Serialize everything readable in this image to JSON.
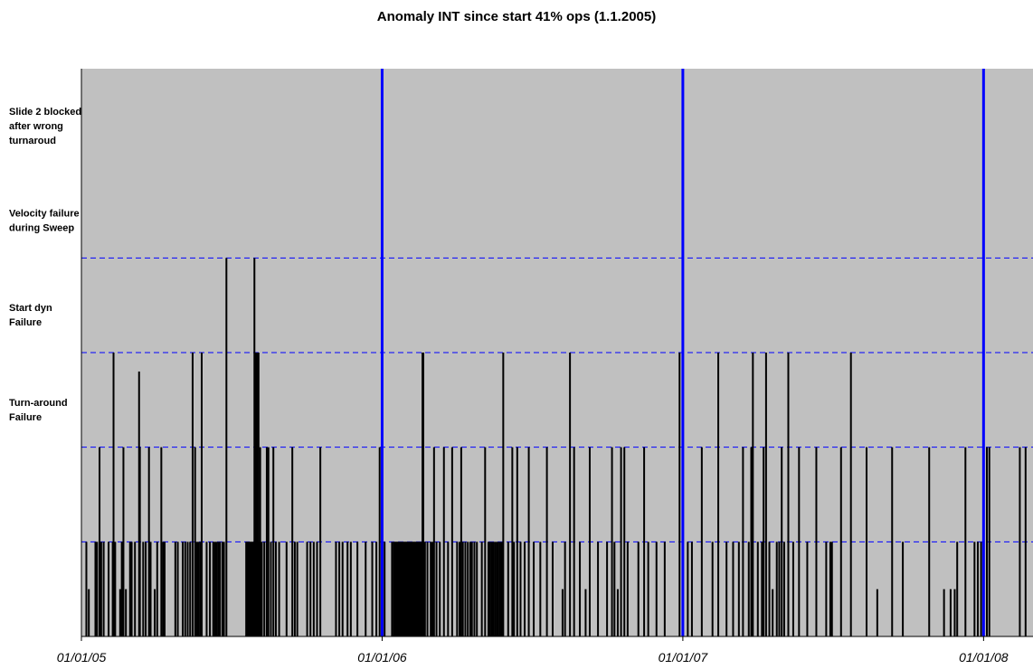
{
  "chart_data": {
    "type": "bar",
    "title": "Anomaly INT since start 41% ops (1.1.2005)",
    "x_range": [
      "2005-01-01",
      "2008-03-01"
    ],
    "y_range": [
      0,
      6
    ],
    "x_tick_labels": [
      "01/01/05",
      "01/01/06",
      "01/01/07",
      "01/01/08"
    ],
    "x_tick_dates": [
      "2005-01-01",
      "2006-01-01",
      "2007-01-01",
      "2008-01-01"
    ],
    "y_category_labels": [
      {
        "value": 5.4,
        "lines": [
          "Slide 2 blocked",
          "after wrong",
          "turnaroud"
        ]
      },
      {
        "value": 4.4,
        "lines": [
          "Velocity failure",
          "during Sweep"
        ]
      },
      {
        "value": 3.4,
        "lines": [
          "Start dyn",
          "Failure"
        ]
      },
      {
        "value": 2.4,
        "lines": [
          "Turn-around",
          "Failure"
        ]
      }
    ],
    "reference_lines": [
      1,
      2,
      3,
      4
    ],
    "year_markers": [
      "2006-01-01",
      "2007-01-01",
      "2008-01-01"
    ],
    "grid": true,
    "plot_background": "#c0c0c0",
    "colors": {
      "bars": "#000000",
      "reference_lines": "#0000ff",
      "year_markers": "#0000ff"
    },
    "events": [
      {
        "date": "2005-01-07",
        "value": 1
      },
      {
        "date": "2005-01-10",
        "value": 0.5
      },
      {
        "date": "2005-01-18",
        "value": 1
      },
      {
        "date": "2005-01-20",
        "value": 1
      },
      {
        "date": "2005-01-23",
        "value": 2
      },
      {
        "date": "2005-01-25",
        "value": 1
      },
      {
        "date": "2005-01-28",
        "value": 1
      },
      {
        "date": "2005-02-03",
        "value": 1
      },
      {
        "date": "2005-02-08",
        "value": 1
      },
      {
        "date": "2005-02-09",
        "value": 3
      },
      {
        "date": "2005-02-11",
        "value": 1
      },
      {
        "date": "2005-02-17",
        "value": 0.5
      },
      {
        "date": "2005-02-19",
        "value": 1
      },
      {
        "date": "2005-02-21",
        "value": 2
      },
      {
        "date": "2005-02-24",
        "value": 0.5
      },
      {
        "date": "2005-03-01",
        "value": 1
      },
      {
        "date": "2005-03-03",
        "value": 1
      },
      {
        "date": "2005-03-07",
        "value": 1
      },
      {
        "date": "2005-03-12",
        "value": 2.8
      },
      {
        "date": "2005-03-13",
        "value": 2
      },
      {
        "date": "2005-03-17",
        "value": 1
      },
      {
        "date": "2005-03-20",
        "value": 1
      },
      {
        "date": "2005-03-24",
        "value": 2
      },
      {
        "date": "2005-03-26",
        "value": 1
      },
      {
        "date": "2005-03-31",
        "value": 0.5
      },
      {
        "date": "2005-04-03",
        "value": 1
      },
      {
        "date": "2005-04-08",
        "value": 2
      },
      {
        "date": "2005-04-10",
        "value": 1
      },
      {
        "date": "2005-04-12",
        "value": 1
      },
      {
        "date": "2005-04-25",
        "value": 1
      },
      {
        "date": "2005-04-28",
        "value": 1
      },
      {
        "date": "2005-05-04",
        "value": 1
      },
      {
        "date": "2005-05-07",
        "value": 1
      },
      {
        "date": "2005-05-10",
        "value": 1
      },
      {
        "date": "2005-05-13",
        "value": 1
      },
      {
        "date": "2005-05-16",
        "value": 3
      },
      {
        "date": "2005-05-19",
        "value": 2
      },
      {
        "date": "2005-05-21",
        "value": 1
      },
      {
        "date": "2005-05-23",
        "value": 1
      },
      {
        "date": "2005-05-25",
        "value": 1
      },
      {
        "date": "2005-05-27",
        "value": 3
      },
      {
        "date": "2005-06-02",
        "value": 1
      },
      {
        "date": "2005-06-06",
        "value": 1
      },
      {
        "date": "2005-06-10",
        "value": 1
      },
      {
        "date": "2005-06-12",
        "value": 1
      },
      {
        "date": "2005-06-14",
        "value": 1
      },
      {
        "date": "2005-06-16",
        "value": 1
      },
      {
        "date": "2005-06-18",
        "value": 1
      },
      {
        "date": "2005-06-21",
        "value": 1
      },
      {
        "date": "2005-06-23",
        "value": 1
      },
      {
        "date": "2005-06-26",
        "value": 4
      },
      {
        "date": "2005-07-20",
        "value": 1
      },
      {
        "date": "2005-07-21",
        "value": 1
      },
      {
        "date": "2005-07-22",
        "value": 1
      },
      {
        "date": "2005-07-23",
        "value": 1
      },
      {
        "date": "2005-07-24",
        "value": 1
      },
      {
        "date": "2005-07-25",
        "value": 1
      },
      {
        "date": "2005-07-26",
        "value": 1
      },
      {
        "date": "2005-07-27",
        "value": 1
      },
      {
        "date": "2005-07-28",
        "value": 1
      },
      {
        "date": "2005-07-29",
        "value": 1
      },
      {
        "date": "2005-07-30",
        "value": 4
      },
      {
        "date": "2005-07-31",
        "value": 3
      },
      {
        "date": "2005-08-01",
        "value": 1
      },
      {
        "date": "2005-08-02",
        "value": 3
      },
      {
        "date": "2005-08-03",
        "value": 1
      },
      {
        "date": "2005-08-04",
        "value": 3
      },
      {
        "date": "2005-08-05",
        "value": 1
      },
      {
        "date": "2005-08-06",
        "value": 2
      },
      {
        "date": "2005-08-08",
        "value": 1
      },
      {
        "date": "2005-08-11",
        "value": 1
      },
      {
        "date": "2005-08-14",
        "value": 2
      },
      {
        "date": "2005-08-16",
        "value": 2
      },
      {
        "date": "2005-08-19",
        "value": 1
      },
      {
        "date": "2005-08-22",
        "value": 2
      },
      {
        "date": "2005-08-25",
        "value": 1
      },
      {
        "date": "2005-08-29",
        "value": 1
      },
      {
        "date": "2005-09-07",
        "value": 1
      },
      {
        "date": "2005-09-14",
        "value": 2
      },
      {
        "date": "2005-09-17",
        "value": 1
      },
      {
        "date": "2005-09-20",
        "value": 1
      },
      {
        "date": "2005-10-02",
        "value": 1
      },
      {
        "date": "2005-10-06",
        "value": 1
      },
      {
        "date": "2005-10-10",
        "value": 1
      },
      {
        "date": "2005-10-14",
        "value": 1
      },
      {
        "date": "2005-10-18",
        "value": 2
      },
      {
        "date": "2005-11-06",
        "value": 1
      },
      {
        "date": "2005-11-10",
        "value": 1
      },
      {
        "date": "2005-11-14",
        "value": 1
      },
      {
        "date": "2005-11-20",
        "value": 1
      },
      {
        "date": "2005-11-24",
        "value": 1
      },
      {
        "date": "2005-12-02",
        "value": 1
      },
      {
        "date": "2005-12-12",
        "value": 1
      },
      {
        "date": "2005-12-20",
        "value": 1
      },
      {
        "date": "2005-12-25",
        "value": 1
      },
      {
        "date": "2005-12-29",
        "value": 2
      },
      {
        "date": "2006-01-04",
        "value": 1
      },
      {
        "date": "2006-01-13",
        "value": 1
      },
      {
        "date": "2006-01-15",
        "value": 1
      },
      {
        "date": "2006-01-16",
        "value": 1
      },
      {
        "date": "2006-01-17",
        "value": 1
      },
      {
        "date": "2006-01-18",
        "value": 1
      },
      {
        "date": "2006-01-19",
        "value": 1
      },
      {
        "date": "2006-01-20",
        "value": 1
      },
      {
        "date": "2006-01-21",
        "value": 1
      },
      {
        "date": "2006-01-22",
        "value": 1
      },
      {
        "date": "2006-01-23",
        "value": 1
      },
      {
        "date": "2006-01-24",
        "value": 1
      },
      {
        "date": "2006-01-25",
        "value": 1
      },
      {
        "date": "2006-01-26",
        "value": 1
      },
      {
        "date": "2006-01-27",
        "value": 1
      },
      {
        "date": "2006-01-28",
        "value": 1
      },
      {
        "date": "2006-01-29",
        "value": 1
      },
      {
        "date": "2006-01-30",
        "value": 1
      },
      {
        "date": "2006-01-31",
        "value": 1
      },
      {
        "date": "2006-02-01",
        "value": 1
      },
      {
        "date": "2006-02-02",
        "value": 1
      },
      {
        "date": "2006-02-03",
        "value": 1
      },
      {
        "date": "2006-02-04",
        "value": 1
      },
      {
        "date": "2006-02-05",
        "value": 1
      },
      {
        "date": "2006-02-06",
        "value": 1
      },
      {
        "date": "2006-02-07",
        "value": 1
      },
      {
        "date": "2006-02-08",
        "value": 1
      },
      {
        "date": "2006-02-09",
        "value": 1
      },
      {
        "date": "2006-02-10",
        "value": 1
      },
      {
        "date": "2006-02-11",
        "value": 1
      },
      {
        "date": "2006-02-12",
        "value": 1
      },
      {
        "date": "2006-02-13",
        "value": 1
      },
      {
        "date": "2006-02-14",
        "value": 1
      },
      {
        "date": "2006-02-15",
        "value": 1
      },
      {
        "date": "2006-02-16",
        "value": 1
      },
      {
        "date": "2006-02-17",
        "value": 1
      },
      {
        "date": "2006-02-18",
        "value": 1
      },
      {
        "date": "2006-02-19",
        "value": 3
      },
      {
        "date": "2006-02-20",
        "value": 3
      },
      {
        "date": "2006-02-21",
        "value": 1
      },
      {
        "date": "2006-02-22",
        "value": 1
      },
      {
        "date": "2006-02-25",
        "value": 1
      },
      {
        "date": "2006-03-01",
        "value": 1
      },
      {
        "date": "2006-03-03",
        "value": 1
      },
      {
        "date": "2006-03-05",
        "value": 2
      },
      {
        "date": "2006-03-08",
        "value": 1
      },
      {
        "date": "2006-03-12",
        "value": 1
      },
      {
        "date": "2006-03-17",
        "value": 2
      },
      {
        "date": "2006-03-22",
        "value": 1
      },
      {
        "date": "2006-03-27",
        "value": 2
      },
      {
        "date": "2006-04-02",
        "value": 1
      },
      {
        "date": "2006-04-05",
        "value": 1
      },
      {
        "date": "2006-04-07",
        "value": 2
      },
      {
        "date": "2006-04-09",
        "value": 1
      },
      {
        "date": "2006-04-12",
        "value": 1
      },
      {
        "date": "2006-04-15",
        "value": 1
      },
      {
        "date": "2006-04-18",
        "value": 1
      },
      {
        "date": "2006-04-20",
        "value": 1
      },
      {
        "date": "2006-04-23",
        "value": 1
      },
      {
        "date": "2006-04-26",
        "value": 1
      },
      {
        "date": "2006-05-02",
        "value": 1
      },
      {
        "date": "2006-05-06",
        "value": 2
      },
      {
        "date": "2006-05-10",
        "value": 1
      },
      {
        "date": "2006-05-12",
        "value": 1
      },
      {
        "date": "2006-05-14",
        "value": 1
      },
      {
        "date": "2006-05-16",
        "value": 1
      },
      {
        "date": "2006-05-18",
        "value": 1
      },
      {
        "date": "2006-05-20",
        "value": 1
      },
      {
        "date": "2006-05-22",
        "value": 1
      },
      {
        "date": "2006-05-24",
        "value": 1
      },
      {
        "date": "2006-05-26",
        "value": 1
      },
      {
        "date": "2006-05-28",
        "value": 3
      },
      {
        "date": "2006-06-03",
        "value": 1
      },
      {
        "date": "2006-06-08",
        "value": 2
      },
      {
        "date": "2006-06-10",
        "value": 1
      },
      {
        "date": "2006-06-14",
        "value": 2
      },
      {
        "date": "2006-06-18",
        "value": 1
      },
      {
        "date": "2006-06-23",
        "value": 1
      },
      {
        "date": "2006-06-28",
        "value": 2
      },
      {
        "date": "2006-07-04",
        "value": 1
      },
      {
        "date": "2006-07-12",
        "value": 1
      },
      {
        "date": "2006-07-20",
        "value": 2
      },
      {
        "date": "2006-07-27",
        "value": 1
      },
      {
        "date": "2006-08-08",
        "value": 0.5
      },
      {
        "date": "2006-08-11",
        "value": 1
      },
      {
        "date": "2006-08-17",
        "value": 3
      },
      {
        "date": "2006-08-22",
        "value": 2
      },
      {
        "date": "2006-08-29",
        "value": 1
      },
      {
        "date": "2006-09-05",
        "value": 0.5
      },
      {
        "date": "2006-09-10",
        "value": 2
      },
      {
        "date": "2006-09-20",
        "value": 1
      },
      {
        "date": "2006-10-01",
        "value": 1
      },
      {
        "date": "2006-10-07",
        "value": 2
      },
      {
        "date": "2006-10-10",
        "value": 1
      },
      {
        "date": "2006-10-14",
        "value": 0.5
      },
      {
        "date": "2006-10-18",
        "value": 2
      },
      {
        "date": "2006-10-22",
        "value": 2
      },
      {
        "date": "2006-10-26",
        "value": 1
      },
      {
        "date": "2006-11-08",
        "value": 1
      },
      {
        "date": "2006-11-15",
        "value": 2
      },
      {
        "date": "2006-11-20",
        "value": 1
      },
      {
        "date": "2006-11-30",
        "value": 1
      },
      {
        "date": "2006-12-10",
        "value": 1
      },
      {
        "date": "2006-12-28",
        "value": 3
      },
      {
        "date": "2007-01-01",
        "value": 0.5
      },
      {
        "date": "2007-01-07",
        "value": 1
      },
      {
        "date": "2007-01-12",
        "value": 1
      },
      {
        "date": "2007-01-24",
        "value": 2
      },
      {
        "date": "2007-02-06",
        "value": 1
      },
      {
        "date": "2007-02-13",
        "value": 3
      },
      {
        "date": "2007-02-23",
        "value": 1
      },
      {
        "date": "2007-03-03",
        "value": 1
      },
      {
        "date": "2007-03-10",
        "value": 1
      },
      {
        "date": "2007-03-15",
        "value": 2
      },
      {
        "date": "2007-03-22",
        "value": 1
      },
      {
        "date": "2007-03-25",
        "value": 2
      },
      {
        "date": "2007-03-27",
        "value": 3
      },
      {
        "date": "2007-04-02",
        "value": 1
      },
      {
        "date": "2007-04-07",
        "value": 1
      },
      {
        "date": "2007-04-09",
        "value": 2
      },
      {
        "date": "2007-04-12",
        "value": 3
      },
      {
        "date": "2007-04-16",
        "value": 1
      },
      {
        "date": "2007-04-20",
        "value": 0.5
      },
      {
        "date": "2007-04-25",
        "value": 1
      },
      {
        "date": "2007-04-28",
        "value": 1
      },
      {
        "date": "2007-05-01",
        "value": 2
      },
      {
        "date": "2007-05-04",
        "value": 1
      },
      {
        "date": "2007-05-09",
        "value": 3
      },
      {
        "date": "2007-05-15",
        "value": 1
      },
      {
        "date": "2007-05-22",
        "value": 2
      },
      {
        "date": "2007-06-01",
        "value": 1
      },
      {
        "date": "2007-06-12",
        "value": 2
      },
      {
        "date": "2007-06-24",
        "value": 1
      },
      {
        "date": "2007-06-29",
        "value": 1
      },
      {
        "date": "2007-07-01",
        "value": 1
      },
      {
        "date": "2007-07-12",
        "value": 2
      },
      {
        "date": "2007-07-24",
        "value": 3
      },
      {
        "date": "2007-08-12",
        "value": 2
      },
      {
        "date": "2007-08-25",
        "value": 0.5
      },
      {
        "date": "2007-09-12",
        "value": 2
      },
      {
        "date": "2007-09-25",
        "value": 1
      },
      {
        "date": "2007-10-27",
        "value": 2
      },
      {
        "date": "2007-11-14",
        "value": 0.5
      },
      {
        "date": "2007-11-22",
        "value": 0.5
      },
      {
        "date": "2007-11-27",
        "value": 0.5
      },
      {
        "date": "2007-11-30",
        "value": 1
      },
      {
        "date": "2007-12-10",
        "value": 2
      },
      {
        "date": "2007-12-21",
        "value": 1
      },
      {
        "date": "2007-12-25",
        "value": 1
      },
      {
        "date": "2007-12-29",
        "value": 1
      },
      {
        "date": "2008-01-05",
        "value": 2
      },
      {
        "date": "2008-01-08",
        "value": 2
      },
      {
        "date": "2008-02-14",
        "value": 2
      },
      {
        "date": "2008-02-21",
        "value": 2
      }
    ]
  }
}
